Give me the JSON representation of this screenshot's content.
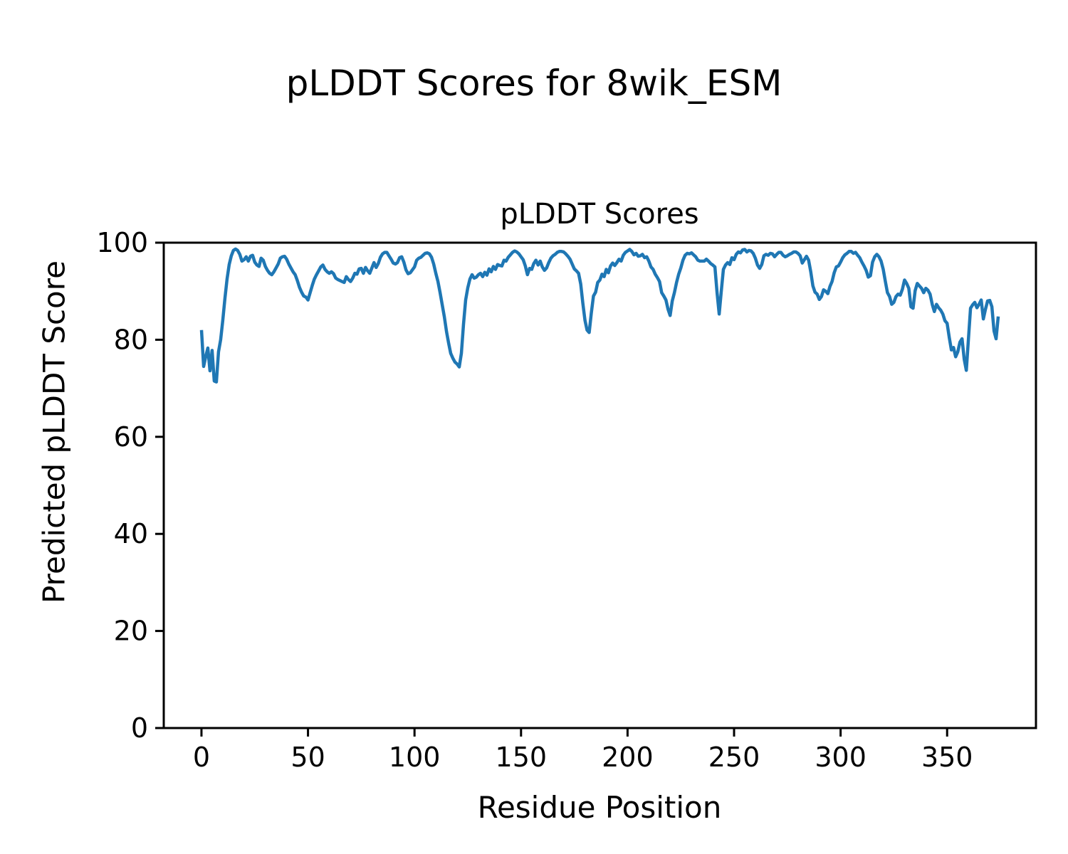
{
  "figure": {
    "suptitle": "pLDDT Scores for 8wik_ESM",
    "axes_title": "pLDDT Scores",
    "xlabel": "Residue Position",
    "ylabel": "Predicted pLDDT Score"
  },
  "chart_data": {
    "type": "line",
    "title": "pLDDT Scores",
    "suptitle": "pLDDT Scores for 8wik_ESM",
    "xlabel": "Residue Position",
    "ylabel": "Predicted pLDDT Score",
    "grid": false,
    "legend": null,
    "line_color": "#1f77b4",
    "line_width": 4.5,
    "axis_color": "#000000",
    "xlim": [
      -17.7,
      391.7
    ],
    "ylim": [
      0,
      100
    ],
    "x_ticks": [
      0,
      50,
      100,
      150,
      200,
      250,
      300,
      350
    ],
    "y_ticks": [
      0,
      20,
      40,
      60,
      80,
      100
    ],
    "x_start": 0,
    "x_step": 1,
    "values": [
      82,
      74.5,
      76.5,
      78.3,
      73.6,
      77.8,
      71.5,
      71.3,
      77.5,
      80,
      84,
      88.5,
      92.5,
      95.5,
      97.3,
      98.4,
      98.7,
      98.4,
      97.6,
      96.2,
      96.5,
      97.1,
      96.2,
      97.2,
      97.4,
      96,
      95.4,
      95.1,
      96.8,
      96.4,
      95.1,
      94.3,
      93.7,
      93.4,
      94,
      94.8,
      95.6,
      96.8,
      97.1,
      97.2,
      96.6,
      95.6,
      94.8,
      94,
      93.4,
      92.2,
      90.8,
      89.8,
      89,
      88.8,
      88.2,
      89.7,
      91.2,
      92.5,
      93.4,
      94.2,
      95,
      95.4,
      94.5,
      94,
      93.7,
      94,
      93.6,
      92.7,
      92.4,
      92.2,
      92,
      91.8,
      93,
      92.4,
      92,
      92.7,
      93.7,
      93.5,
      94.6,
      94.7,
      93.7,
      94.9,
      94.2,
      93.7,
      94.8,
      95.9,
      94.9,
      95.7,
      97,
      97.7,
      98,
      98,
      97.3,
      96.6,
      95.8,
      95.6,
      95.9,
      96.9,
      97.1,
      96,
      94.4,
      93.6,
      93.8,
      94.4,
      95,
      96.4,
      96.8,
      97,
      97.4,
      97.8,
      97.9,
      97.7,
      97,
      95.6,
      93.7,
      92,
      89.7,
      87.2,
      84.7,
      81.7,
      79.3,
      77.2,
      76.2,
      75.4,
      75,
      74.4,
      77.2,
      83.2,
      88.2,
      90.7,
      92.5,
      93.4,
      92.7,
      92.9,
      93.4,
      93.7,
      93,
      93.9,
      93.3,
      94.6,
      94,
      95.1,
      94.5,
      95.5,
      95.3,
      95.2,
      96.4,
      96.2,
      97,
      97.5,
      98,
      98.3,
      98.1,
      97.7,
      97.1,
      96.5,
      95.2,
      93.4,
      94.7,
      94.5,
      95.7,
      96.4,
      95.4,
      96.2,
      95,
      94.3,
      94.8,
      95.9,
      96.8,
      97.3,
      97.6,
      98,
      98.2,
      98.2,
      98.1,
      97.7,
      97.2,
      96.6,
      95.6,
      94.6,
      94.2,
      93.7,
      91.5,
      87.5,
      84,
      82,
      81.5,
      85.5,
      89,
      89.8,
      91.8,
      92.3,
      93.5,
      93,
      94.5,
      93.8,
      95.2,
      95.8,
      95.3,
      95.9,
      96.6,
      96.2,
      97.4,
      98,
      98.3,
      98.6,
      98.2,
      97.5,
      97.8,
      97.2,
      97.3,
      97.6,
      96.9,
      97.1,
      96.2,
      95,
      94.5,
      93.5,
      92.8,
      92,
      89.7,
      89,
      88.2,
      86.3,
      85,
      88,
      89.7,
      91.8,
      93.5,
      94.8,
      96.4,
      97.4,
      97.8,
      97.7,
      97.9,
      97.5,
      97.1,
      96.4,
      96.2,
      96.2,
      96.2,
      96.6,
      96.2,
      95.7,
      95.4,
      95,
      89.7,
      85.3,
      90.1,
      94.5,
      95.4,
      95.9,
      95.5,
      96.9,
      96.5,
      97.6,
      98.1,
      97.9,
      98.5,
      98.6,
      98.1,
      98.4,
      98.3,
      97.8,
      96.8,
      95.4,
      94.7,
      95.5,
      97.3,
      97.6,
      97.4,
      97.8,
      97.7,
      97.1,
      97.6,
      98,
      98,
      97.4,
      97.1,
      97.3,
      97.6,
      97.8,
      98.1,
      98.1,
      97.8,
      97.3,
      95.8,
      96.5,
      97.2,
      96.4,
      94,
      91.1,
      89.8,
      89.4,
      88.3,
      88.9,
      90.3,
      90,
      89.5,
      91,
      92,
      93.8,
      95,
      95.2,
      96,
      96.9,
      97.5,
      97.8,
      98.2,
      98.2,
      97.8,
      98,
      97.4,
      96.9,
      96,
      95.2,
      94.3,
      92.9,
      93.2,
      96,
      97.1,
      97.6,
      97.1,
      96.2,
      94.5,
      92,
      89.7,
      88.9,
      87.3,
      87.7,
      88.9,
      89.4,
      89.2,
      90.4,
      92.3,
      91.6,
      90.6,
      86.8,
      86.5,
      90.1,
      91.6,
      91.1,
      90.6,
      89.7,
      90.6,
      90.2,
      89.4,
      87.3,
      85.8,
      87.3,
      86.6,
      86.1,
      85.3,
      83.9,
      83.4,
      80.5,
      77.9,
      78.4,
      76.5,
      77.5,
      79.5,
      80.2,
      76,
      73.7,
      80,
      86.5,
      87.2,
      87.7,
      86.6,
      87.3,
      88.2,
      84.3,
      86.3,
      88,
      88.1,
      86.8,
      81.8,
      80.2,
      84.8
    ]
  }
}
